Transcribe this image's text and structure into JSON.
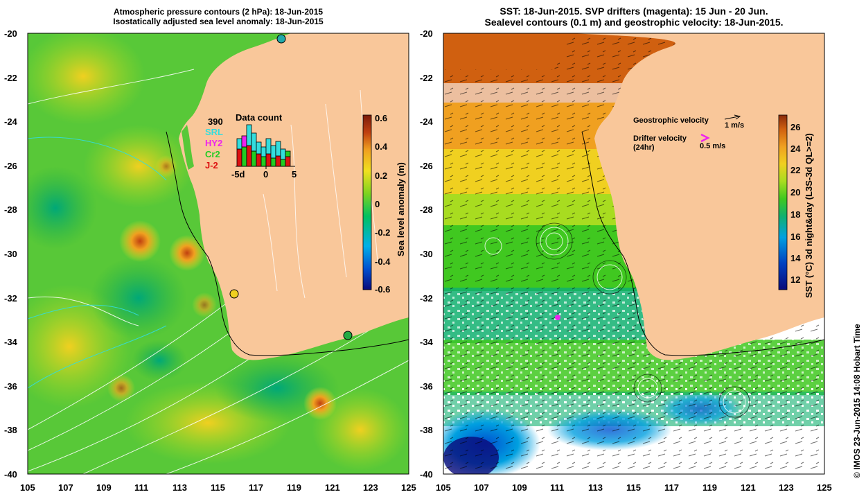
{
  "left_panel": {
    "title_line1": "Atmospheric pressure contours (2 hPa): 18-Jun-2015",
    "title_line2": "Isostatically adjusted sea level anomaly: 18-Jun-2015",
    "lat_ticks": [
      "-20",
      "-22",
      "-24",
      "-26",
      "-28",
      "-30",
      "-32",
      "-34",
      "-36",
      "-38",
      "-40"
    ],
    "lon_ticks": [
      "105",
      "107",
      "109",
      "111",
      "113",
      "115",
      "117",
      "119",
      "121",
      "123",
      "125"
    ],
    "colorbar_label": "Sea level anomaly (m)",
    "colorbar_ticks": [
      "0.6",
      "0.4",
      "0.2",
      "0",
      "-0.2",
      "-0.4",
      "-0.6"
    ],
    "inset": {
      "total": "390",
      "title": "Data count",
      "legend": [
        {
          "label": "SRL",
          "color": "#33dddd"
        },
        {
          "label": "HY2",
          "color": "#ee22ee"
        },
        {
          "label": "Cr2",
          "color": "#22cc22"
        },
        {
          "label": "J-2",
          "color": "#dd1111"
        }
      ],
      "x_ticks": [
        "-5d",
        "0",
        "5"
      ]
    }
  },
  "right_panel": {
    "title_line1": "SST: 18-Jun-2015. SVP drifters (magenta): 15 Jun - 20 Jun.",
    "title_line2": "Sealevel contours (0.1 m) and geostrophic velocity: 18-Jun-2015.",
    "lat_ticks": [
      "-20",
      "-22",
      "-24",
      "-26",
      "-28",
      "-30",
      "-32",
      "-34",
      "-36",
      "-38",
      "-40"
    ],
    "lon_ticks": [
      "105",
      "107",
      "109",
      "111",
      "113",
      "115",
      "117",
      "119",
      "121",
      "123",
      "125"
    ],
    "colorbar_label": "SST (°C) 3d night&day (L3S-3d QL>=2)",
    "colorbar_ticks": [
      "26",
      "24",
      "22",
      "20",
      "18",
      "16",
      "14",
      "12"
    ],
    "legend": {
      "geo_label": "Geostrophic velocity",
      "geo_scale": "1 m/s",
      "drifter_label": "Drifter velocity",
      "drifter_sub": "(24hr)",
      "drifter_scale": "0.5 m/s"
    }
  },
  "copyright": "© IMOS 23-Jun-2015 14:08 Hobart Time",
  "colors": {
    "land": "#f9c79a",
    "sla_scale": [
      "#0a0a7a",
      "#0050d0",
      "#00b0e8",
      "#00c060",
      "#7ed320",
      "#f0e020",
      "#f0a020",
      "#c04010",
      "#7a1a0a"
    ],
    "sst_scale": [
      "#0a0a7a",
      "#0040c0",
      "#00a0e0",
      "#10b070",
      "#40c820",
      "#a8dc20",
      "#f0d020",
      "#f0a020",
      "#d06010",
      "#8a2a0a"
    ]
  }
}
